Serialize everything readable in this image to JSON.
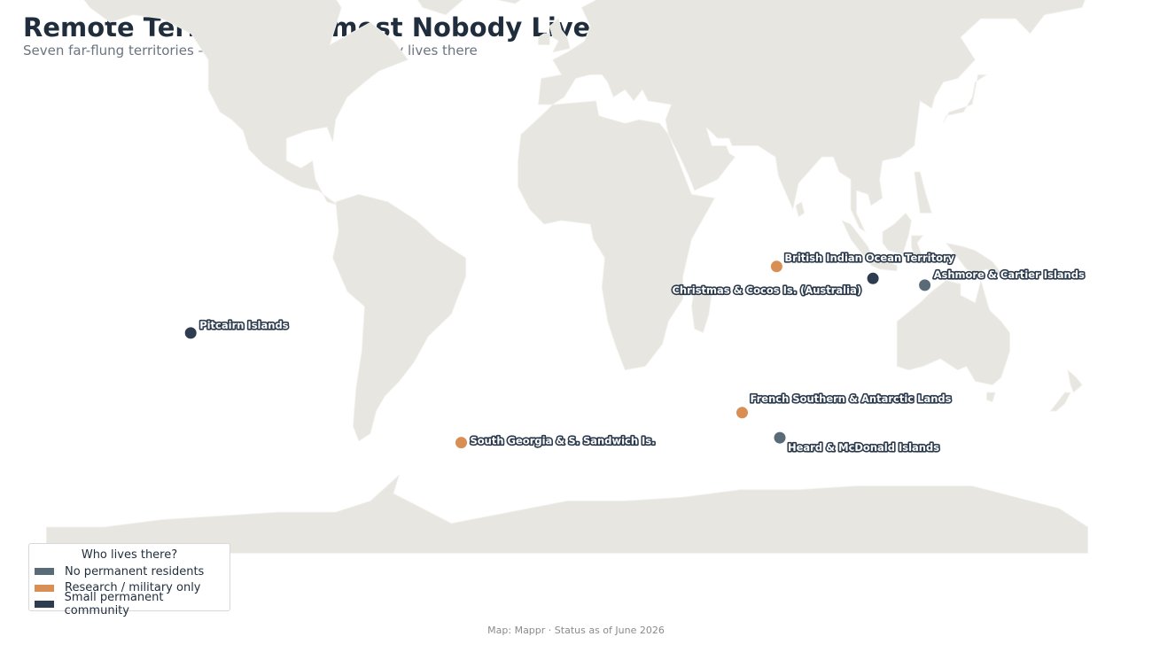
{
  "header": {
    "title": "Remote Territories Almost Nobody Lives In",
    "subtitle": "Seven far-flung territories — and who, if anyone, actually lives there"
  },
  "colors": {
    "land": "#e8e6e1",
    "none": "#5a6b78",
    "research": "#d98e54",
    "community": "#2d3c4f"
  },
  "markers": [
    {
      "name": "British Indian Ocean Territory",
      "lon": 72.4,
      "lat": -7.3,
      "category": "research"
    },
    {
      "name": "Christmas & Cocos Is. (Australia)",
      "lon": 105.7,
      "lat": -10.5,
      "category": "community"
    },
    {
      "name": "Ashmore & Cartier Islands",
      "lon": 123.6,
      "lat": -12.3,
      "category": "none"
    },
    {
      "name": "Pitcairn Islands",
      "lon": -130.1,
      "lat": -25.1,
      "category": "community"
    },
    {
      "name": "French Southern & Antarctic Lands",
      "lon": 60.5,
      "lat": -46.4,
      "category": "research"
    },
    {
      "name": "Heard & McDonald Islands",
      "lon": 73.5,
      "lat": -53.1,
      "category": "none"
    },
    {
      "name": "South Georgia & S. Sandwich Is.",
      "lon": -36.6,
      "lat": -54.4,
      "category": "research"
    }
  ],
  "legend": {
    "title": "Who lives there?",
    "items": [
      {
        "key": "none",
        "label": "No permanent residents"
      },
      {
        "key": "research",
        "label": "Research / military only"
      },
      {
        "key": "community",
        "label": "Small permanent community"
      }
    ]
  },
  "credit": "Map: Mappr · Status as of June 2026"
}
